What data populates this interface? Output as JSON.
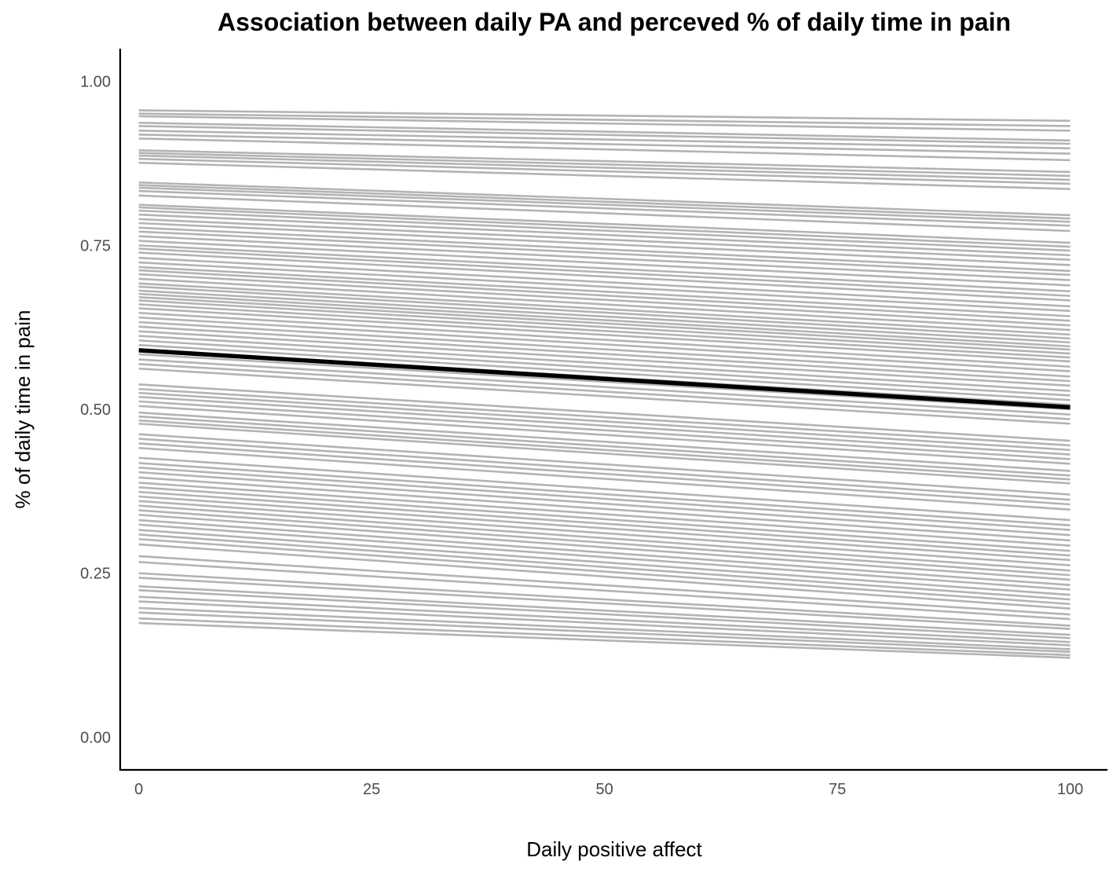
{
  "chart_data": {
    "type": "line",
    "title": "Association between daily PA and perceved % of daily time in pain",
    "xlabel": "Daily positive affect",
    "ylabel": "% of daily time in pain",
    "xlim": [
      -2,
      104
    ],
    "ylim": [
      -0.05,
      1.05
    ],
    "xticks": [
      0,
      25,
      50,
      75,
      100
    ],
    "xtick_labels": [
      "0",
      "25",
      "50",
      "75",
      "100"
    ],
    "yticks": [
      0,
      0.25,
      0.5,
      0.75,
      1.0
    ],
    "ytick_labels": [
      "0.00",
      "0.25",
      "0.50",
      "0.75",
      "1.00"
    ],
    "grid": false,
    "legend": "none",
    "colors": {
      "individual": "#b3b3b3",
      "average": "#000000"
    },
    "average_line": {
      "x": [
        0,
        100
      ],
      "y": [
        0.59,
        0.503
      ]
    },
    "individual_lines": [
      [
        0.956,
        0.94
      ],
      [
        0.951,
        0.932
      ],
      [
        0.947,
        0.925
      ],
      [
        0.937,
        0.91
      ],
      [
        0.932,
        0.905
      ],
      [
        0.925,
        0.898
      ],
      [
        0.919,
        0.89
      ],
      [
        0.913,
        0.88
      ],
      [
        0.895,
        0.862
      ],
      [
        0.891,
        0.856
      ],
      [
        0.887,
        0.85
      ],
      [
        0.882,
        0.844
      ],
      [
        0.876,
        0.836
      ],
      [
        0.846,
        0.796
      ],
      [
        0.842,
        0.791
      ],
      [
        0.838,
        0.786
      ],
      [
        0.833,
        0.78
      ],
      [
        0.826,
        0.772
      ],
      [
        0.812,
        0.754
      ],
      [
        0.808,
        0.748
      ],
      [
        0.803,
        0.742
      ],
      [
        0.797,
        0.735
      ],
      [
        0.79,
        0.728
      ],
      [
        0.784,
        0.72
      ],
      [
        0.777,
        0.711
      ],
      [
        0.771,
        0.705
      ],
      [
        0.764,
        0.697
      ],
      [
        0.757,
        0.689
      ],
      [
        0.75,
        0.68
      ],
      [
        0.745,
        0.673
      ],
      [
        0.739,
        0.666
      ],
      [
        0.731,
        0.657
      ],
      [
        0.724,
        0.65
      ],
      [
        0.717,
        0.642
      ],
      [
        0.712,
        0.635
      ],
      [
        0.706,
        0.628
      ],
      [
        0.699,
        0.621
      ],
      [
        0.692,
        0.614
      ],
      [
        0.687,
        0.608
      ],
      [
        0.681,
        0.602
      ],
      [
        0.676,
        0.596
      ],
      [
        0.671,
        0.591
      ],
      [
        0.666,
        0.585
      ],
      [
        0.66,
        0.579
      ],
      [
        0.654,
        0.573
      ],
      [
        0.647,
        0.565
      ],
      [
        0.64,
        0.558
      ],
      [
        0.633,
        0.55
      ],
      [
        0.626,
        0.543
      ],
      [
        0.619,
        0.536
      ],
      [
        0.612,
        0.528
      ],
      [
        0.605,
        0.521
      ],
      [
        0.598,
        0.514
      ],
      [
        0.591,
        0.507
      ],
      [
        0.584,
        0.5
      ],
      [
        0.576,
        0.492
      ],
      [
        0.569,
        0.485
      ],
      [
        0.562,
        0.478
      ],
      [
        0.538,
        0.452
      ],
      [
        0.531,
        0.445
      ],
      [
        0.525,
        0.438
      ],
      [
        0.519,
        0.431
      ],
      [
        0.512,
        0.424
      ],
      [
        0.505,
        0.417
      ],
      [
        0.495,
        0.406
      ],
      [
        0.489,
        0.399
      ],
      [
        0.483,
        0.393
      ],
      [
        0.478,
        0.387
      ],
      [
        0.462,
        0.37
      ],
      [
        0.455,
        0.362
      ],
      [
        0.448,
        0.355
      ],
      [
        0.441,
        0.347
      ],
      [
        0.426,
        0.331
      ],
      [
        0.418,
        0.323
      ],
      [
        0.411,
        0.316
      ],
      [
        0.404,
        0.308
      ],
      [
        0.396,
        0.3
      ],
      [
        0.388,
        0.292
      ],
      [
        0.381,
        0.284
      ],
      [
        0.374,
        0.277
      ],
      [
        0.367,
        0.27
      ],
      [
        0.36,
        0.262
      ],
      [
        0.353,
        0.254
      ],
      [
        0.346,
        0.247
      ],
      [
        0.339,
        0.24
      ],
      [
        0.331,
        0.232
      ],
      [
        0.324,
        0.225
      ],
      [
        0.316,
        0.217
      ],
      [
        0.309,
        0.21
      ],
      [
        0.302,
        0.203
      ],
      [
        0.294,
        0.196
      ],
      [
        0.276,
        0.187
      ],
      [
        0.267,
        0.18
      ],
      [
        0.25,
        0.17
      ],
      [
        0.243,
        0.165
      ],
      [
        0.23,
        0.156
      ],
      [
        0.224,
        0.151
      ],
      [
        0.214,
        0.145
      ],
      [
        0.207,
        0.14
      ],
      [
        0.197,
        0.134
      ],
      [
        0.19,
        0.13
      ],
      [
        0.181,
        0.125
      ],
      [
        0.174,
        0.121
      ]
    ]
  }
}
